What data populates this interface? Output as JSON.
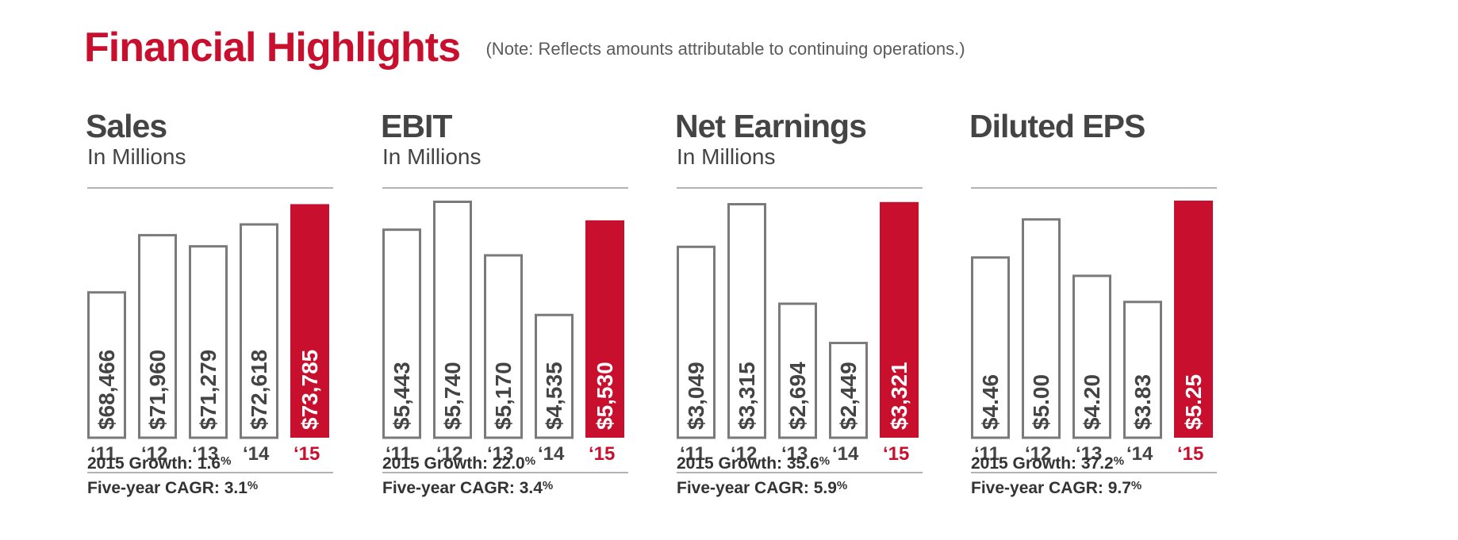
{
  "header": {
    "title": "Financial Highlights",
    "note": "(Note: Reflects amounts attributable to continuing operations.)"
  },
  "colors": {
    "accent": "#c8102e",
    "bar_outline": "#7a7a7a",
    "rule": "#9a9a9a",
    "text": "#4a4a4a"
  },
  "panels": [
    {
      "title": "Sales",
      "subtitle": "In Millions",
      "growth_label": "2015 Growth: 1.6",
      "growth_unit": "%",
      "cagr_label": "Five-year CAGR: 3.1",
      "cagr_unit": "%"
    },
    {
      "title": "EBIT",
      "subtitle": "In Millions",
      "growth_label": "2015 Growth: 22.0",
      "growth_unit": "%",
      "cagr_label": "Five-year CAGR: 3.4",
      "cagr_unit": "%"
    },
    {
      "title": "Net Earnings",
      "subtitle": "In Millions",
      "growth_label": "2015 Growth: 35.6",
      "growth_unit": "%",
      "cagr_label": "Five-year CAGR: 5.9",
      "cagr_unit": "%"
    },
    {
      "title": "Diluted EPS",
      "subtitle": "",
      "growth_label": "2015 Growth: 37.2",
      "growth_unit": "%",
      "cagr_label": "Five-year CAGR: 9.7",
      "cagr_unit": "%"
    }
  ],
  "chart_data": [
    {
      "type": "bar",
      "title": "Sales",
      "subtitle": "In Millions",
      "categories": [
        "‘11",
        "‘12",
        "‘13",
        "‘14",
        "‘15"
      ],
      "values": [
        68466,
        71960,
        71279,
        72618,
        73785
      ],
      "labels": [
        "$68,466",
        "$71,960",
        "$71,279",
        "$72,618",
        "$73,785"
      ],
      "highlight_index": 4,
      "ylim": [
        60000,
        74000
      ]
    },
    {
      "type": "bar",
      "title": "EBIT",
      "subtitle": "In Millions",
      "categories": [
        "‘11",
        "‘12",
        "‘13",
        "‘14",
        "‘15"
      ],
      "values": [
        5443,
        5740,
        5170,
        4535,
        5530
      ],
      "labels": [
        "$5,443",
        "$5,740",
        "$5,170",
        "$4,535",
        "$5,530"
      ],
      "highlight_index": 4,
      "ylim": [
        3300,
        5740
      ]
    },
    {
      "type": "bar",
      "title": "Net Earnings",
      "subtitle": "In Millions",
      "categories": [
        "‘11",
        "‘12",
        "‘13",
        "‘14",
        "‘15"
      ],
      "values": [
        3049,
        3315,
        2694,
        2449,
        3321
      ],
      "labels": [
        "$3,049",
        "$3,315",
        "$2,694",
        "$2,449",
        "$3,321"
      ],
      "highlight_index": 4,
      "ylim": [
        1900,
        3330
      ]
    },
    {
      "type": "bar",
      "title": "Diluted EPS",
      "subtitle": "",
      "categories": [
        "‘11",
        "‘12",
        "‘13",
        "‘14",
        "‘15"
      ],
      "values": [
        4.46,
        5.0,
        4.2,
        3.83,
        5.25
      ],
      "labels": [
        "$4.46",
        "$5.00",
        "$4.20",
        "$3.83",
        "$5.25"
      ],
      "highlight_index": 4,
      "ylim": [
        2.0,
        5.25
      ]
    }
  ]
}
